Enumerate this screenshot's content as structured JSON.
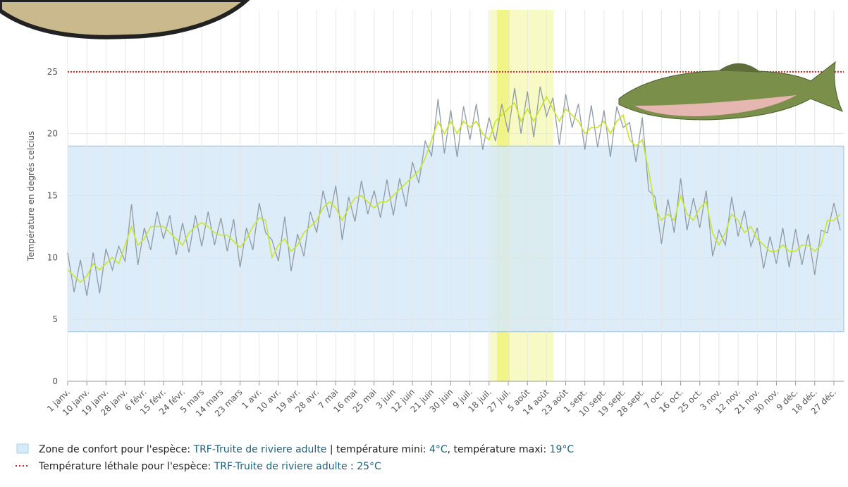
{
  "chart_data": {
    "type": "line",
    "y_axis_label": "Température en degrés celcius",
    "categories": [
      "1 janv.",
      null,
      null,
      "10 janv.",
      null,
      null,
      "19 janv.",
      null,
      null,
      "28 janv.",
      null,
      null,
      "6 févr.",
      null,
      null,
      "15 févr.",
      null,
      null,
      "24 févr.",
      null,
      null,
      "5 mars",
      null,
      null,
      "14 mars",
      null,
      null,
      "23 mars",
      null,
      null,
      "1 avr.",
      null,
      null,
      "10 avr.",
      null,
      null,
      "19 avr.",
      null,
      null,
      "28 avr.",
      null,
      null,
      "7 mai",
      null,
      null,
      "16 mai",
      null,
      null,
      "25 mai",
      null,
      null,
      "3 juin",
      null,
      null,
      "12 juin",
      null,
      null,
      "21 juin",
      null,
      null,
      "30 juin",
      null,
      null,
      "9 juil.",
      null,
      null,
      "18 juil.",
      null,
      null,
      "27 juil.",
      null,
      null,
      "5 août",
      null,
      null,
      "14 août",
      null,
      null,
      "23 août",
      null,
      null,
      "1 sept.",
      null,
      null,
      "10 sept.",
      null,
      null,
      "19 sept.",
      null,
      null,
      "28 sept.",
      null,
      null,
      "7 oct.",
      null,
      null,
      "16 oct.",
      null,
      null,
      "25 oct.",
      null,
      null,
      "3 nov.",
      null,
      null,
      "12 nov.",
      null,
      null,
      "21 nov.",
      null,
      null,
      "30 nov.",
      null,
      null,
      "9 déc.",
      null,
      null,
      "18 déc.",
      null,
      null,
      "27 déc.",
      null
    ],
    "series": [
      {
        "color": "#8f9ba6",
        "values": [
          10.4,
          7.2,
          9.8,
          6.9,
          10.4,
          7.1,
          10.7,
          9,
          10.9,
          9.7,
          14.3,
          9.4,
          12.4,
          10.6,
          13.7,
          11.5,
          13.4,
          10.2,
          12.8,
          10.4,
          13.4,
          10.9,
          13.7,
          11,
          13.2,
          10.5,
          13.1,
          9.2,
          12.4,
          10.6,
          14.4,
          12,
          11.4,
          9.7,
          13.3,
          8.9,
          11.9,
          10.1,
          13.7,
          12,
          15.4,
          13.2,
          15.8,
          11.4,
          14.9,
          12.9,
          16.2,
          13.5,
          15.4,
          13.2,
          16.3,
          13.4,
          16.4,
          14.1,
          17.7,
          16,
          19.4,
          18.2,
          22.8,
          18.4,
          21.9,
          18.1,
          22.2,
          19.5,
          22.4,
          18.7,
          21.3,
          19.4,
          22.4,
          20.1,
          23.7,
          20,
          23.4,
          19.7,
          23.8,
          21.4,
          22.9,
          19.1,
          23.2,
          20.5,
          22.4,
          18.7,
          22.3,
          18.9,
          21.9,
          18.1,
          22.2,
          20.5,
          20.9,
          17.7,
          21.3,
          15.4,
          14.9,
          11.1,
          14.7,
          12,
          16.4,
          12.2,
          14.8,
          12.4,
          15.4,
          10.1,
          12.2,
          11,
          14.9,
          11.7,
          13.8,
          10.9,
          12.4,
          9.1,
          11.7,
          9.5,
          12.4,
          9.2,
          12.3,
          9.4,
          11.9,
          8.6,
          12.2,
          12,
          14.4,
          12.2
        ]
      },
      {
        "color": "#c8e62a",
        "values": [
          9,
          8.5,
          8,
          8.5,
          9.5,
          9,
          9.5,
          10,
          9.5,
          11,
          12.5,
          11,
          11.5,
          12.5,
          12.5,
          12.5,
          12,
          11.5,
          11,
          12,
          12.5,
          12.8,
          12.5,
          12,
          11.8,
          11.8,
          11.3,
          10.8,
          11.5,
          12.5,
          13.2,
          13,
          10,
          11,
          11.5,
          10.5,
          11,
          12,
          12.5,
          13,
          14,
          14.5,
          14,
          13,
          14,
          14.8,
          15,
          14.5,
          14,
          14.5,
          14.5,
          15,
          15.5,
          16,
          16.5,
          17,
          18,
          19.5,
          21,
          20,
          21,
          20,
          21,
          20.5,
          21,
          20,
          19.5,
          21,
          21.5,
          22,
          22.5,
          21,
          22,
          21,
          22,
          23,
          22,
          21,
          22,
          21.5,
          21,
          20,
          20.5,
          20.5,
          21,
          20,
          21,
          21.5,
          19.5,
          19,
          19.5,
          17,
          14,
          13,
          13.5,
          13,
          15,
          13.5,
          13,
          14,
          14.5,
          12,
          11,
          12,
          13.5,
          13,
          12,
          12.5,
          11.5,
          11,
          10.5,
          10.5,
          11,
          10.5,
          10.5,
          11,
          11,
          10.5,
          11,
          13,
          13,
          13.5
        ]
      }
    ],
    "ylim": [
      0,
      30
    ],
    "yticks": [
      0,
      5,
      10,
      15,
      20,
      25
    ],
    "grid": true,
    "comfort_zone": {
      "min": 4,
      "max": 19,
      "color": "#d6eaf8",
      "legend_prefix": "Zone de confort pour l'espèce:",
      "species": "TRF-Truite de riviere adulte",
      "min_text": "| température mini:",
      "min_label": "4°C",
      "max_text": ", température maxi:",
      "max_label": "19°C"
    },
    "lethal": {
      "value": 25,
      "color": "#d62728",
      "legend_prefix": "Température léthale pour l'espèce:",
      "species": "TRF-Truite de riviere adulte",
      "separator": ":",
      "label": "25°C"
    }
  }
}
